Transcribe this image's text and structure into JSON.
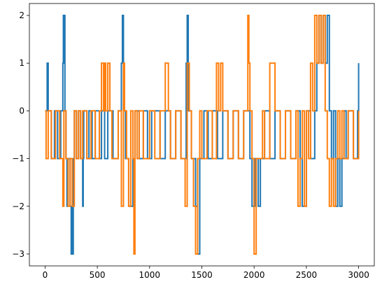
{
  "chart_data": {
    "type": "line",
    "title": "",
    "xlabel": "",
    "ylabel": "",
    "xlim": [
      -150,
      3150
    ],
    "ylim": [
      -3.25,
      2.25
    ],
    "x_ticks": [
      0,
      500,
      1000,
      1500,
      2000,
      2500,
      3000
    ],
    "y_ticks": [
      -3,
      -2,
      -1,
      0,
      1,
      2
    ],
    "x_tick_labels": [
      "0",
      "500",
      "1000",
      "1500",
      "2000",
      "2500",
      "3000"
    ],
    "y_tick_labels": [
      "−3",
      "−2",
      "−1",
      "0",
      "1",
      "2"
    ],
    "grid": false,
    "legend": "none",
    "series": [
      {
        "color": "#1f77b4",
        "step": true,
        "x": [
          0,
          20,
          30,
          60,
          90,
          120,
          150,
          170,
          175,
          180,
          185,
          190,
          200,
          210,
          220,
          240,
          250,
          255,
          260,
          270,
          280,
          300,
          320,
          340,
          360,
          365,
          370,
          400,
          420,
          450,
          480,
          520,
          540,
          570,
          600,
          650,
          700,
          730,
          740,
          750,
          770,
          800,
          840,
          860,
          900,
          940,
          980,
          1020,
          1100,
          1150,
          1200,
          1250,
          1300,
          1350,
          1360,
          1370,
          1400,
          1440,
          1460,
          1480,
          1520,
          1560,
          1600,
          1650,
          1700,
          1750,
          1800,
          1850,
          1900,
          1960,
          1980,
          2000,
          2010,
          2020,
          2040,
          2060,
          2100,
          2150,
          2200,
          2250,
          2300,
          2350,
          2400,
          2440,
          2460,
          2500,
          2540,
          2580,
          2600,
          2620,
          2640,
          2660,
          2680,
          2700,
          2720,
          2740,
          2760,
          2780,
          2800,
          2820,
          2840,
          2860,
          2880,
          2900,
          2950,
          2990,
          3000
        ],
        "y": [
          0,
          1,
          0,
          -1,
          0,
          -1,
          0,
          1,
          2,
          1,
          2,
          0,
          -1,
          -2,
          -1,
          -2,
          -3,
          -2,
          -3,
          -1,
          0,
          -1,
          0,
          -1,
          -2,
          -1,
          0,
          -1,
          0,
          -1,
          0,
          -1,
          0,
          -1,
          0,
          -1,
          0,
          1,
          2,
          0,
          -1,
          -2,
          -1,
          0,
          -1,
          0,
          -1,
          0,
          -1,
          0,
          -1,
          0,
          -1,
          1,
          2,
          0,
          -1,
          -2,
          -3,
          -1,
          0,
          -1,
          0,
          -1,
          0,
          -1,
          0,
          -1,
          0,
          -1,
          -2,
          -1,
          -2,
          -1,
          -2,
          -1,
          0,
          -1,
          0,
          -1,
          0,
          -1,
          0,
          -1,
          -2,
          0,
          -1,
          0,
          1,
          2,
          1,
          2,
          1,
          2,
          0,
          -1,
          0,
          -2,
          -1,
          -2,
          -1,
          0,
          -1,
          0,
          -1,
          0,
          1
        ]
      },
      {
        "color": "#ff7f0e",
        "step": true,
        "x": [
          0,
          10,
          30,
          60,
          100,
          140,
          170,
          180,
          200,
          220,
          240,
          260,
          280,
          300,
          320,
          340,
          360,
          400,
          440,
          480,
          520,
          540,
          560,
          570,
          580,
          600,
          620,
          640,
          700,
          730,
          750,
          760,
          780,
          800,
          820,
          840,
          850,
          860,
          880,
          900,
          940,
          1000,
          1050,
          1100,
          1150,
          1180,
          1200,
          1250,
          1300,
          1340,
          1360,
          1380,
          1400,
          1420,
          1440,
          1460,
          1480,
          1500,
          1550,
          1600,
          1640,
          1660,
          1680,
          1700,
          1750,
          1800,
          1850,
          1900,
          1940,
          1950,
          1960,
          1980,
          2000,
          2020,
          2080,
          2100,
          2150,
          2200,
          2250,
          2300,
          2350,
          2400,
          2420,
          2440,
          2460,
          2480,
          2500,
          2520,
          2540,
          2560,
          2580,
          2600,
          2620,
          2640,
          2660,
          2680,
          2700,
          2720,
          2740,
          2760,
          2780,
          2800,
          2820,
          2840,
          2860,
          2900,
          2950,
          3000
        ],
        "y": [
          0,
          -1,
          0,
          -1,
          0,
          -1,
          -2,
          0,
          -1,
          -2,
          -1,
          -2,
          0,
          -1,
          0,
          -1,
          0,
          -1,
          0,
          -1,
          0,
          1,
          0,
          1,
          0,
          1,
          0,
          -1,
          0,
          -2,
          1,
          0,
          -1,
          -2,
          0,
          -1,
          -3,
          0,
          -1,
          0,
          -1,
          0,
          -1,
          0,
          1,
          0,
          -1,
          0,
          -1,
          -2,
          1,
          0,
          -1,
          -2,
          -3,
          -1,
          0,
          -1,
          0,
          -1,
          1,
          0,
          1,
          0,
          -1,
          0,
          -1,
          0,
          2,
          1,
          0,
          -1,
          -3,
          -1,
          0,
          -1,
          1,
          0,
          -1,
          0,
          -1,
          0,
          -2,
          -1,
          0,
          -2,
          0,
          -1,
          1,
          0,
          2,
          1,
          2,
          1,
          2,
          0,
          -1,
          -2,
          -1,
          -2,
          -1,
          0,
          -1,
          0,
          -1,
          0,
          -1,
          0
        ]
      }
    ]
  }
}
